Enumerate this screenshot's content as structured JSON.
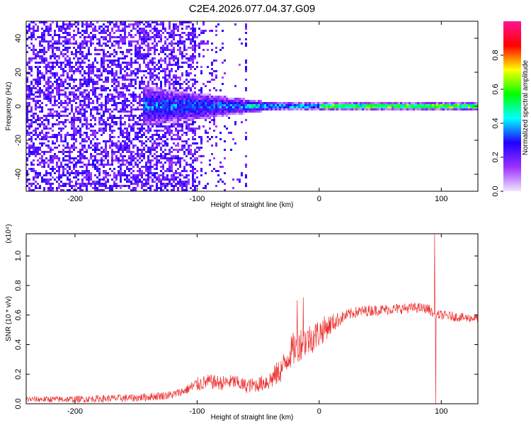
{
  "figure": {
    "title": "C2E4.2026.077.04.37.G09"
  },
  "chart_data": [
    {
      "type": "heatmap",
      "title": "",
      "xlabel": "Height of straight line (km)",
      "ylabel": "Frequency (Hz)",
      "xlim": [
        -240,
        130
      ],
      "ylim": [
        -50,
        50
      ],
      "xticks": [
        -200,
        -100,
        0,
        100
      ],
      "xtick_labels": [
        "-200",
        "-100",
        "0",
        "100"
      ],
      "yticks": [
        -40,
        -20,
        0,
        20,
        40
      ],
      "ytick_labels": [
        "-40",
        "-20",
        "0",
        "20",
        "40"
      ],
      "colorbar": {
        "label": "Normalized spectral amplitude",
        "range": [
          0,
          1
        ],
        "ticks": [
          0,
          0.2,
          0.4,
          0.6,
          0.8
        ],
        "tick_labels": [
          "0.0",
          "0.2",
          "0.4",
          "0.6",
          "0.8"
        ],
        "colormap": [
          "#f0e6ff",
          "#9b30ff",
          "#2000ff",
          "#00ffff",
          "#00ff00",
          "#ffff00",
          "#ff0000",
          "#ff1493"
        ]
      },
      "features": {
        "broadband_noise_x_range": [
          -240,
          -100
        ],
        "noise_fade_x_range": [
          -100,
          -60
        ],
        "vertical_streak_x": -60,
        "central_band_x_range": [
          -145,
          130
        ],
        "central_band_center_hz": 0,
        "central_band_halfwidth_hz_start": 12,
        "central_band_halfwidth_hz_end": 2
      },
      "grid": false
    },
    {
      "type": "line",
      "title": "",
      "xlabel": "Height of straight line (km)",
      "ylabel": "SNR (10 * v/v)",
      "scale_label": "(x10⁴)",
      "xlim": [
        -240,
        130
      ],
      "ylim": [
        0,
        1.15
      ],
      "xticks": [
        -200,
        -100,
        0,
        100
      ],
      "xtick_labels": [
        "-200",
        "-100",
        "0",
        "100"
      ],
      "yticks": [
        0,
        0.2,
        0.4,
        0.6,
        0.8,
        1.0
      ],
      "ytick_labels": [
        "0.0",
        "0.2",
        "0.4",
        "0.6",
        "0.8",
        "1.0"
      ],
      "grid": false,
      "series": [
        {
          "color": "#ee3333",
          "envelope": {
            "x": [
              -240,
              -200,
              -150,
              -120,
              -110,
              -100,
              -90,
              -80,
              -70,
              -60,
              -50,
              -40,
              -30,
              -25,
              -20,
              -15,
              -10,
              -5,
              0,
              10,
              20,
              30,
              40,
              60,
              80,
              90,
              92,
              94,
              96,
              100,
              110,
              120,
              130
            ],
            "y": [
              0.03,
              0.03,
              0.04,
              0.06,
              0.09,
              0.13,
              0.15,
              0.14,
              0.15,
              0.12,
              0.13,
              0.16,
              0.24,
              0.33,
              0.38,
              0.41,
              0.43,
              0.45,
              0.48,
              0.54,
              0.59,
              0.62,
              0.63,
              0.64,
              0.65,
              0.64,
              0.62,
              0.6,
              0.6,
              0.6,
              0.59,
              0.58,
              0.58
            ]
          },
          "noise_amplitude": {
            "x": [
              -240,
              -110,
              -100,
              -50,
              -30,
              -20,
              0,
              20,
              130
            ],
            "y": [
              0.02,
              0.03,
              0.05,
              0.05,
              0.09,
              0.12,
              0.1,
              0.04,
              0.03
            ]
          },
          "spikes": [
            {
              "x": 94.5,
              "y": 1.15
            },
            {
              "x": 95.5,
              "y": 0.0
            },
            {
              "x": -18,
              "y": 0.7
            },
            {
              "x": -13,
              "y": 0.72
            }
          ]
        }
      ]
    }
  ]
}
